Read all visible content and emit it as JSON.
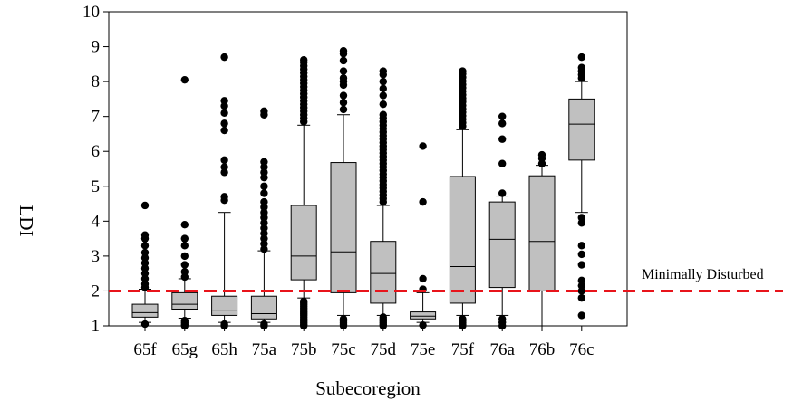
{
  "chart_data": {
    "type": "box",
    "title": "",
    "xlabel": "Subecoregion",
    "ylabel": "LDI",
    "ylim": [
      1,
      10
    ],
    "yticks": [
      "1",
      "2",
      "3",
      "4",
      "5",
      "6",
      "7",
      "8",
      "9",
      "10"
    ],
    "grid": false,
    "categories": [
      "65f",
      "65g",
      "65h",
      "75a",
      "75b",
      "75c",
      "75d",
      "75e",
      "75f",
      "76a",
      "76b",
      "76c"
    ],
    "boxes": [
      {
        "category": "65f",
        "whisker_low": 1.1,
        "q1": 1.25,
        "median": 1.38,
        "q3": 1.62,
        "whisker_high": 2.05,
        "outliers": [
          1.05,
          2.1,
          2.2,
          2.35,
          2.5,
          2.65,
          2.8,
          2.95,
          3.1,
          3.3,
          3.5,
          3.6,
          4.45
        ]
      },
      {
        "category": "65g",
        "whisker_low": 1.22,
        "q1": 1.48,
        "median": 1.62,
        "q3": 1.95,
        "whisker_high": 2.35,
        "outliers": [
          1.0,
          1.05,
          1.1,
          1.15,
          2.4,
          2.55,
          2.75,
          3.0,
          3.3,
          3.5,
          3.9,
          8.05
        ]
      },
      {
        "category": "65h",
        "whisker_low": 1.1,
        "q1": 1.3,
        "median": 1.45,
        "q3": 1.85,
        "whisker_high": 4.25,
        "outliers": [
          1.0,
          1.05,
          4.6,
          4.7,
          5.4,
          5.55,
          5.75,
          6.6,
          6.8,
          7.1,
          7.3,
          7.45,
          8.7
        ]
      },
      {
        "category": "75a",
        "whisker_low": 1.1,
        "q1": 1.2,
        "median": 1.35,
        "q3": 1.85,
        "whisker_high": 3.15,
        "outliers": [
          1.0,
          1.05,
          3.2,
          3.35,
          3.5,
          3.65,
          3.8,
          3.95,
          4.1,
          4.25,
          4.4,
          4.55,
          4.8,
          5.0,
          5.25,
          5.4,
          5.55,
          5.7,
          7.05,
          7.15
        ]
      },
      {
        "category": "75b",
        "whisker_low": 1.8,
        "q1": 2.32,
        "median": 3.0,
        "q3": 4.45,
        "whisker_high": 6.75,
        "outliers": [
          1.0,
          1.05,
          1.1,
          1.15,
          1.2,
          1.25,
          1.3,
          1.35,
          1.4,
          1.45,
          1.5,
          1.55,
          1.6,
          1.65,
          1.7,
          6.85,
          6.95,
          7.05,
          7.15,
          7.25,
          7.35,
          7.45,
          7.55,
          7.65,
          7.75,
          7.85,
          7.95,
          8.05,
          8.15,
          8.25,
          8.35,
          8.45,
          8.55,
          8.62
        ]
      },
      {
        "category": "75c",
        "whisker_low": 1.3,
        "q1": 1.95,
        "median": 3.12,
        "q3": 5.68,
        "whisker_high": 7.05,
        "outliers": [
          1.0,
          1.05,
          1.1,
          1.15,
          1.2,
          7.2,
          7.4,
          7.6,
          7.9,
          8.0,
          8.1,
          8.3,
          8.6,
          8.8,
          8.88
        ]
      },
      {
        "category": "75d",
        "whisker_low": 1.3,
        "q1": 1.65,
        "median": 2.5,
        "q3": 3.42,
        "whisker_high": 4.45,
        "outliers": [
          1.0,
          1.05,
          1.1,
          1.15,
          1.2,
          1.25,
          4.55,
          4.65,
          4.75,
          4.85,
          4.95,
          5.05,
          5.15,
          5.25,
          5.35,
          5.45,
          5.55,
          5.65,
          5.75,
          5.85,
          5.95,
          6.05,
          6.15,
          6.25,
          6.35,
          6.45,
          6.55,
          6.65,
          6.75,
          6.85,
          6.95,
          7.05,
          7.35,
          7.6,
          7.8,
          8.0,
          8.2,
          8.3
        ]
      },
      {
        "category": "75e",
        "whisker_low": 1.1,
        "q1": 1.2,
        "median": 1.28,
        "q3": 1.4,
        "whisker_high": 1.95,
        "outliers": [
          1.02,
          2.05,
          2.35,
          4.55,
          6.15
        ]
      },
      {
        "category": "75f",
        "whisker_low": 1.3,
        "q1": 1.65,
        "median": 2.7,
        "q3": 5.28,
        "whisker_high": 6.62,
        "outliers": [
          1.0,
          1.05,
          1.1,
          1.15,
          1.2,
          6.72,
          6.82,
          6.92,
          7.02,
          7.12,
          7.22,
          7.32,
          7.42,
          7.52,
          7.62,
          7.72,
          7.82,
          7.92,
          8.02,
          8.12,
          8.22,
          8.3
        ]
      },
      {
        "category": "76a",
        "whisker_low": 1.3,
        "q1": 2.1,
        "median": 3.48,
        "q3": 4.55,
        "whisker_high": 4.72,
        "outliers": [
          1.0,
          1.1,
          1.2,
          4.8,
          5.65,
          6.35,
          6.8,
          7.0
        ]
      },
      {
        "category": "76b",
        "whisker_low": 1.0,
        "q1": 2.0,
        "median": 3.42,
        "q3": 5.3,
        "whisker_high": 5.6,
        "outliers": [
          5.65,
          5.8,
          5.9
        ]
      },
      {
        "category": "76c",
        "whisker_low": 4.25,
        "q1": 5.75,
        "median": 6.78,
        "q3": 7.5,
        "whisker_high": 8.0,
        "outliers": [
          1.3,
          1.8,
          2.0,
          2.15,
          2.3,
          2.75,
          3.05,
          3.3,
          3.95,
          4.1,
          8.1,
          8.2,
          8.3,
          8.4,
          8.7
        ]
      }
    ],
    "reference_line": {
      "value": 2.0,
      "label": "Minimally Disturbed",
      "color": "#e8141b",
      "style": "dashed"
    },
    "colors": {
      "box_fill": "#c0c0c0",
      "box_stroke": "#000000",
      "outlier": "#000000"
    }
  }
}
